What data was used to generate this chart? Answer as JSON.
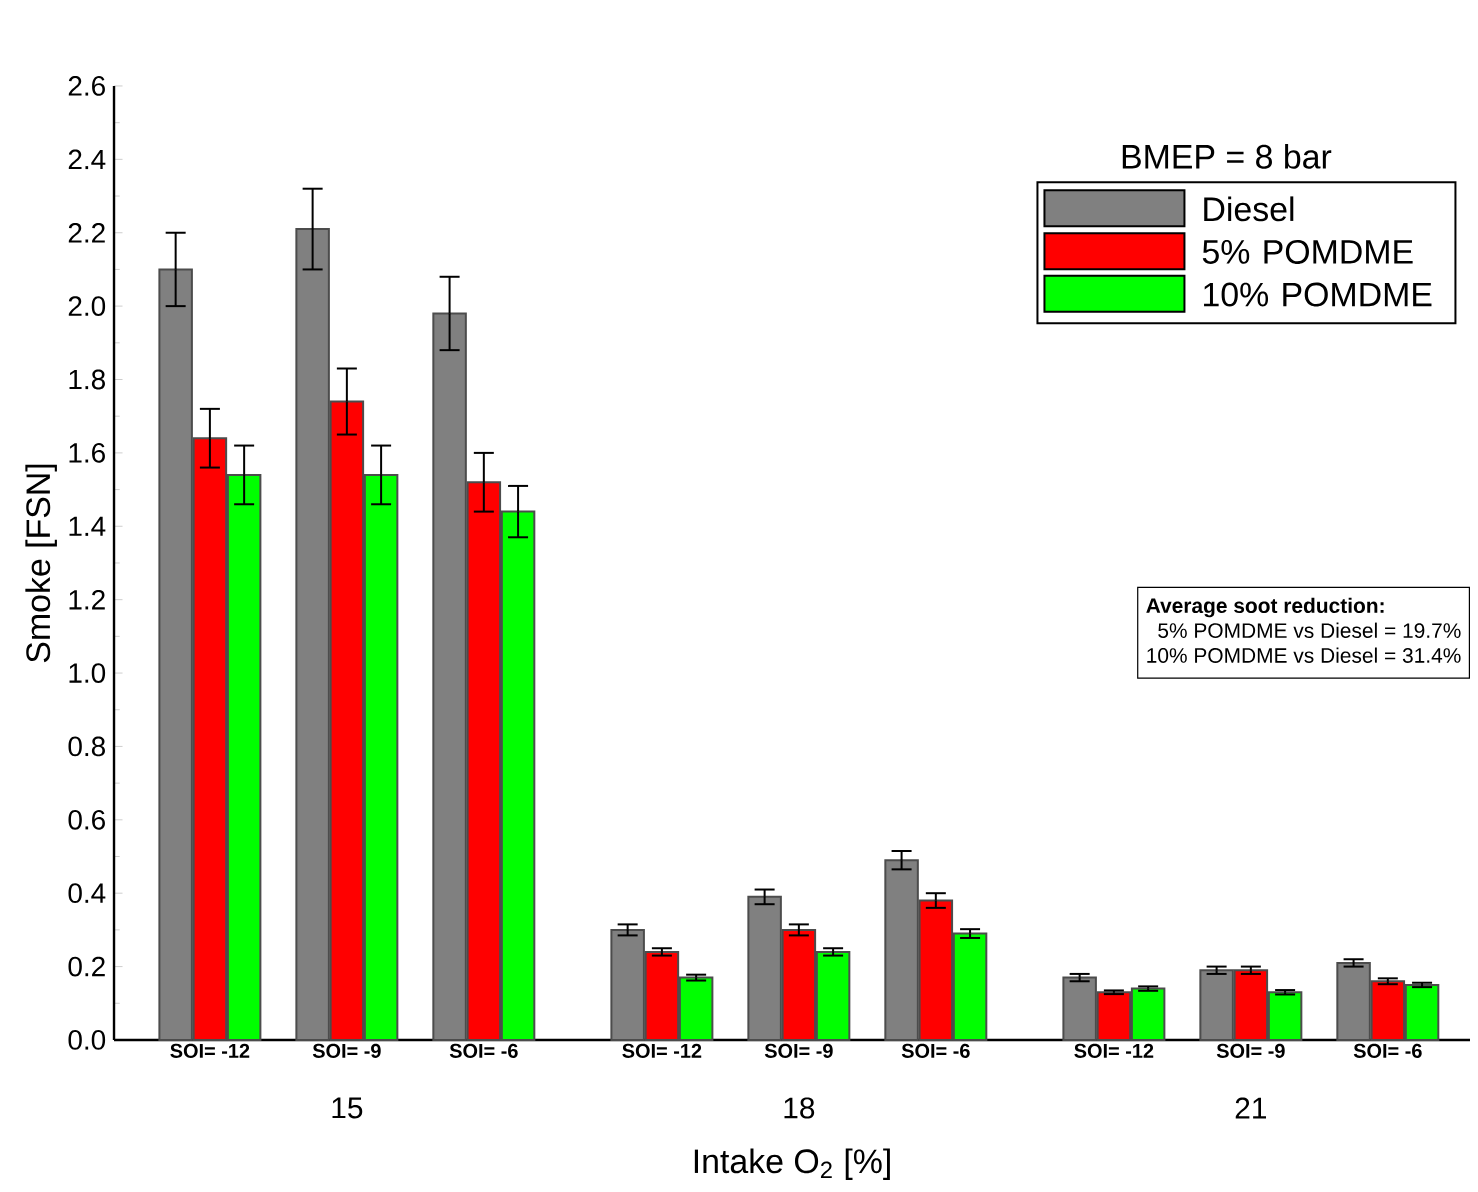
{
  "chart_data": {
    "type": "bar",
    "xlabel": "Intake O$_{2}$ [%]",
    "ylabel": "Smoke [FSN]",
    "legend_title": "BMEP = 8 bar",
    "categories": [
      "SOI= -12",
      "SOI= -9",
      "SOI= -6",
      "SOI= -12",
      "SOI= -9",
      "SOI= -6",
      "SOI= -12",
      "SOI= -9",
      "SOI= -6"
    ],
    "series": [
      {
        "name": "Diesel",
        "color": "#808080",
        "values": [
          2.1,
          2.21,
          1.98,
          0.3,
          0.39,
          0.49,
          0.17,
          0.19,
          0.21
        ],
        "errors": [
          0.1,
          0.11,
          0.1,
          0.015,
          0.02,
          0.025,
          0.01,
          0.01,
          0.01
        ]
      },
      {
        "name": "5% POMDME",
        "color": "#ff0000",
        "values": [
          1.64,
          1.74,
          1.52,
          0.24,
          0.3,
          0.38,
          0.13,
          0.19,
          0.16
        ],
        "errors": [
          0.08,
          0.09,
          0.08,
          0.01,
          0.015,
          0.02,
          0.005,
          0.01,
          0.008
        ]
      },
      {
        "name": "10% POMDME",
        "color": "#00ff00",
        "values": [
          1.54,
          1.54,
          1.44,
          0.17,
          0.24,
          0.29,
          0.14,
          0.13,
          0.15
        ],
        "errors": [
          0.08,
          0.08,
          0.07,
          0.008,
          0.01,
          0.012,
          0.006,
          0.006,
          0.006
        ]
      }
    ],
    "ylim": [
      0,
      2.6
    ],
    "yticks": [
      {
        "value": 0,
        "label": "0.0"
      },
      {
        "value": 0.2,
        "label": "0.2"
      },
      {
        "value": 0.4,
        "label": "0.4"
      },
      {
        "value": 0.6,
        "label": "0.6"
      },
      {
        "value": 0.8,
        "label": "0.8"
      },
      {
        "value": 1.0,
        "label": "1.0"
      },
      {
        "value": 1.2,
        "label": "1.2"
      },
      {
        "value": 1.4,
        "label": "1.4"
      },
      {
        "value": 1.6,
        "label": "1.6"
      },
      {
        "value": 1.8,
        "label": "1.8"
      },
      {
        "value": 2.0,
        "label": "2.0"
      },
      {
        "value": 2.2,
        "label": "2.2"
      },
      {
        "value": 2.4,
        "label": "2.4"
      },
      {
        "value": 2.6,
        "label": "2.6"
      }
    ],
    "annotations": [
      "15",
      "18",
      "21",
      "Average soot reduction:",
      "5% POMDME vs Diesel = 19.7%",
      "10% POMDME vs Diesel = 31.4%"
    ],
    "legend": "top right",
    "grid": false
  }
}
